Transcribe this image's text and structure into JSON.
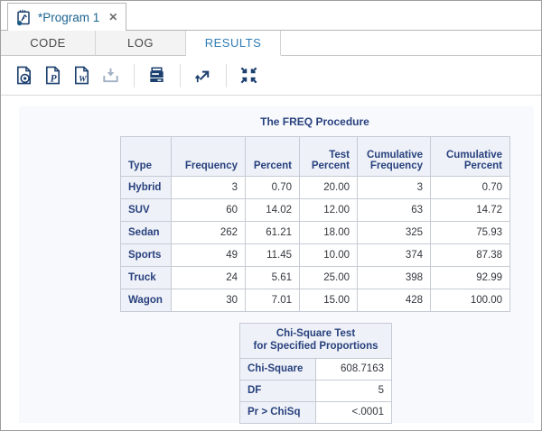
{
  "window": {
    "tab": {
      "title": "*Program 1",
      "icon": "program-icon",
      "close": "close-icon"
    }
  },
  "tabs": [
    {
      "label": "CODE",
      "active": false
    },
    {
      "label": "LOG",
      "active": false
    },
    {
      "label": "RESULTS",
      "active": true
    }
  ],
  "toolbar": {
    "icons": [
      {
        "name": "download-html-icon",
        "disabled": false
      },
      {
        "name": "download-pdf-icon",
        "disabled": false
      },
      {
        "name": "download-rtf-icon",
        "disabled": false
      },
      {
        "name": "download-icon",
        "disabled": true
      },
      {
        "name": "print-icon",
        "disabled": false
      },
      {
        "name": "open-in-new-window-icon",
        "disabled": false
      },
      {
        "name": "collapse-icon",
        "disabled": false
      }
    ]
  },
  "results": {
    "title": "The FREQ Procedure",
    "main_table": {
      "columns": [
        "Type",
        "Frequency",
        "Percent",
        "Test Percent",
        "Cumulative Frequency",
        "Cumulative Percent"
      ],
      "rows": [
        {
          "type": "Hybrid",
          "values": [
            "3",
            "0.70",
            "20.00",
            "3",
            "0.70"
          ]
        },
        {
          "type": "SUV",
          "values": [
            "60",
            "14.02",
            "12.00",
            "63",
            "14.72"
          ]
        },
        {
          "type": "Sedan",
          "values": [
            "262",
            "61.21",
            "18.00",
            "325",
            "75.93"
          ]
        },
        {
          "type": "Sports",
          "values": [
            "49",
            "11.45",
            "10.00",
            "374",
            "87.38"
          ]
        },
        {
          "type": "Truck",
          "values": [
            "24",
            "5.61",
            "25.00",
            "398",
            "92.99"
          ]
        },
        {
          "type": "Wagon",
          "values": [
            "30",
            "7.01",
            "15.00",
            "428",
            "100.00"
          ]
        }
      ]
    },
    "chi_square_table": {
      "title_line1": "Chi-Square Test",
      "title_line2": "for Specified Proportions",
      "rows": [
        {
          "label": "Chi-Square",
          "value": "608.7163"
        },
        {
          "label": "DF",
          "value": "5"
        },
        {
          "label": "Pr > ChiSq",
          "value": "<.0001"
        }
      ]
    }
  },
  "colors": {
    "icon_navy": "#1b3f6e",
    "accent_blue": "#2e7cb5",
    "table_header_text": "#28417e",
    "table_header_bg": "#eef1f7",
    "table_border": "#c6cbd4",
    "panel_bg": "#f7f9fd",
    "tab_title": "#1d6390",
    "disabled_icon": "#9fb0c2"
  }
}
